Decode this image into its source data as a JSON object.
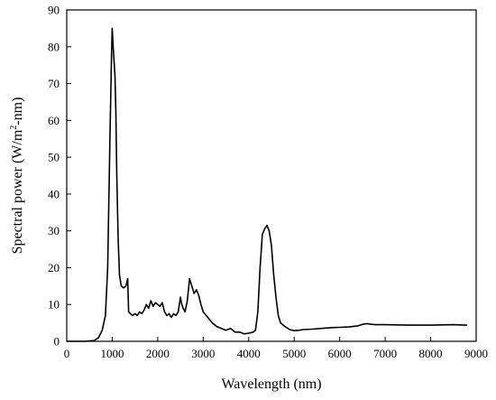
{
  "chart_data": {
    "type": "line",
    "title": "",
    "xlabel": "Wavelength (nm)",
    "ylabel_parts": {
      "before": "Spectral power (W/m",
      "sup": "2",
      "after": "-nm)"
    },
    "xlim": [
      0,
      9000
    ],
    "ylim": [
      0,
      90
    ],
    "x_ticks": [
      0,
      1000,
      2000,
      3000,
      4000,
      5000,
      6000,
      7000,
      8000,
      9000
    ],
    "y_ticks": [
      0,
      10,
      20,
      30,
      40,
      50,
      60,
      70,
      80,
      90
    ],
    "x_tick_labels": [
      "0",
      "1000",
      "2000",
      "3000",
      "4000",
      "5000",
      "6000",
      "7000",
      "8000",
      "9000"
    ],
    "y_tick_labels": [
      "0",
      "10",
      "20",
      "30",
      "40",
      "50",
      "60",
      "70",
      "80",
      "90"
    ],
    "grid": false,
    "series": [
      {
        "color": "#000000",
        "points": [
          [
            0,
            0
          ],
          [
            400,
            0
          ],
          [
            600,
            0.2
          ],
          [
            700,
            1
          ],
          [
            780,
            3
          ],
          [
            850,
            7
          ],
          [
            900,
            20
          ],
          [
            950,
            55
          ],
          [
            985,
            78
          ],
          [
            1000,
            85
          ],
          [
            1020,
            80
          ],
          [
            1040,
            76
          ],
          [
            1060,
            72
          ],
          [
            1080,
            62
          ],
          [
            1100,
            45
          ],
          [
            1130,
            28
          ],
          [
            1160,
            18
          ],
          [
            1200,
            15
          ],
          [
            1250,
            14.5
          ],
          [
            1300,
            15
          ],
          [
            1340,
            17
          ],
          [
            1360,
            8
          ],
          [
            1400,
            7.5
          ],
          [
            1450,
            7
          ],
          [
            1500,
            7.5
          ],
          [
            1550,
            7
          ],
          [
            1600,
            8
          ],
          [
            1650,
            7.5
          ],
          [
            1700,
            8.5
          ],
          [
            1750,
            10
          ],
          [
            1800,
            9
          ],
          [
            1850,
            11
          ],
          [
            1900,
            9.5
          ],
          [
            1950,
            10.5
          ],
          [
            2000,
            10
          ],
          [
            2050,
            9.5
          ],
          [
            2100,
            10.5
          ],
          [
            2150,
            8
          ],
          [
            2200,
            7
          ],
          [
            2250,
            7.5
          ],
          [
            2300,
            6.5
          ],
          [
            2350,
            7.5
          ],
          [
            2400,
            7
          ],
          [
            2450,
            8
          ],
          [
            2500,
            12
          ],
          [
            2530,
            10
          ],
          [
            2560,
            9
          ],
          [
            2600,
            8
          ],
          [
            2650,
            11
          ],
          [
            2700,
            17
          ],
          [
            2750,
            15
          ],
          [
            2800,
            13
          ],
          [
            2850,
            14
          ],
          [
            2900,
            12.5
          ],
          [
            2950,
            10
          ],
          [
            3000,
            8
          ],
          [
            3100,
            6.5
          ],
          [
            3200,
            5
          ],
          [
            3300,
            4
          ],
          [
            3400,
            3.5
          ],
          [
            3500,
            3
          ],
          [
            3600,
            3.5
          ],
          [
            3700,
            2.5
          ],
          [
            3800,
            2.5
          ],
          [
            3900,
            2
          ],
          [
            4000,
            2.2
          ],
          [
            4100,
            2.5
          ],
          [
            4150,
            3
          ],
          [
            4200,
            8
          ],
          [
            4250,
            20
          ],
          [
            4300,
            29
          ],
          [
            4350,
            30.5
          ],
          [
            4400,
            31.5
          ],
          [
            4450,
            30
          ],
          [
            4500,
            26
          ],
          [
            4550,
            18
          ],
          [
            4600,
            12
          ],
          [
            4650,
            7
          ],
          [
            4700,
            5
          ],
          [
            4800,
            4
          ],
          [
            4900,
            3.2
          ],
          [
            5000,
            2.9
          ],
          [
            5100,
            3
          ],
          [
            5200,
            3.2
          ],
          [
            5400,
            3.3
          ],
          [
            5600,
            3.5
          ],
          [
            5800,
            3.7
          ],
          [
            6000,
            3.8
          ],
          [
            6200,
            3.9
          ],
          [
            6400,
            4.2
          ],
          [
            6500,
            4.6
          ],
          [
            6600,
            4.8
          ],
          [
            6700,
            4.6
          ],
          [
            6800,
            4.5
          ],
          [
            7000,
            4.5
          ],
          [
            7500,
            4.4
          ],
          [
            8000,
            4.4
          ],
          [
            8500,
            4.5
          ],
          [
            8800,
            4.4
          ]
        ]
      }
    ]
  }
}
